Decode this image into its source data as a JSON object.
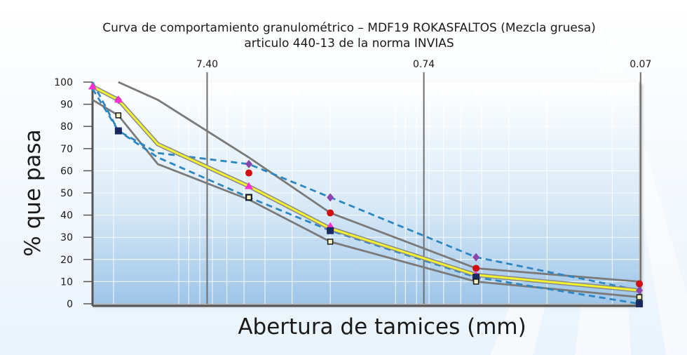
{
  "chart_data": {
    "type": "line",
    "title": "Curva de comportamiento granulométrico – MDF19 ROKASFALTOS (Mezcla gruesa)",
    "subtitle": "articulo 440-13 de la norma INVIAS",
    "xlabel": "Abertura de tamices (mm)",
    "ylabel": "% que pasa",
    "x_scale": "log",
    "x_reversed": true,
    "xlim": [
      25,
      0.075
    ],
    "ylim": [
      0,
      100
    ],
    "y_ticks": [
      "0",
      "10",
      "20",
      "30",
      "40",
      "50",
      "60",
      "70",
      "80",
      "90",
      "100"
    ],
    "x_ticks": [
      {
        "value": 7.4,
        "label": "7.40"
      },
      {
        "value": 0.74,
        "label": "0.74"
      },
      {
        "value": 0.074,
        "label": "0.07"
      }
    ],
    "grid": true,
    "series": [
      {
        "color": "#7a7a7a",
        "style": "solid",
        "marker": "none",
        "x": [
          19,
          12.5,
          4.75,
          2,
          0.425,
          0.075
        ],
        "y": [
          100,
          92,
          66,
          41,
          16,
          10
        ]
      },
      {
        "color": "#7a7a7a",
        "style": "solid",
        "marker": "none",
        "x": [
          25,
          19,
          12.5,
          4.75,
          2,
          0.425,
          0.075
        ],
        "y": [
          92,
          85,
          63,
          47,
          28,
          10,
          3
        ]
      },
      {
        "color": "#2e86c1",
        "style": "dashed",
        "marker": "none",
        "x": [
          25,
          19,
          12.5,
          4.75,
          2,
          0.425,
          0.075
        ],
        "y": [
          97,
          78,
          68,
          63,
          48,
          21,
          6
        ]
      },
      {
        "color": "#2e86c1",
        "style": "dashed",
        "marker": "none",
        "x": [
          25,
          19,
          12.5,
          4.75,
          2,
          0.425,
          0.075
        ],
        "y": [
          100,
          78,
          66,
          48,
          33,
          12,
          0
        ]
      },
      {
        "color": "#f2f230",
        "style": "solid",
        "marker": "none",
        "x": [
          25,
          19,
          12.5,
          4.75,
          2,
          0.425,
          0.075
        ],
        "y": [
          98,
          92,
          72,
          53,
          34,
          13,
          6
        ]
      }
    ],
    "markers": [
      {
        "shape": "diamond",
        "color": "#8e44ad",
        "x": [
          19,
          4.75,
          2,
          0.425,
          0.075
        ],
        "y": [
          92,
          63,
          48,
          21,
          6
        ]
      },
      {
        "shape": "circle",
        "color": "#d01010",
        "x": [
          4.75,
          2,
          0.425,
          0.075
        ],
        "y": [
          59,
          41,
          16,
          9
        ]
      },
      {
        "shape": "triangle",
        "color": "#ff2fd1",
        "x": [
          25,
          19,
          4.75,
          2,
          0.425
        ],
        "y": [
          98,
          92,
          53,
          35,
          13
        ]
      },
      {
        "shape": "square",
        "color": "#1b2a5e",
        "x": [
          19,
          4.75,
          2,
          0.425,
          0.075
        ],
        "y": [
          78,
          48,
          33,
          12,
          0
        ]
      },
      {
        "shape": "hollow-square",
        "color": "#1a1a1a",
        "x": [
          19,
          4.75,
          2,
          0.425,
          0.075
        ],
        "y": [
          85,
          48,
          28,
          10,
          3
        ]
      }
    ]
  }
}
